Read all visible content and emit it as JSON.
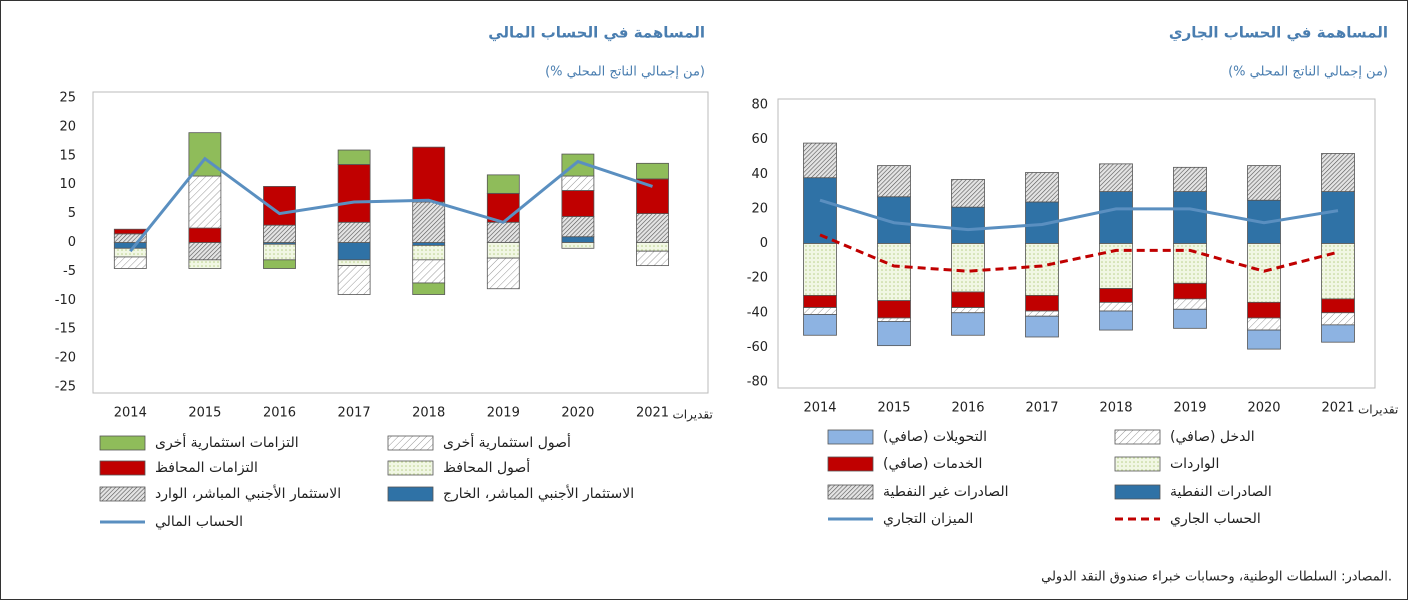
{
  "chart_data": [
    {
      "type": "bar",
      "stacked": true,
      "title": "المساهمة في الحساب الجاري",
      "subtitle": "(% من إجمالي الناتج المحلي)",
      "categories": [
        "2014",
        "2015",
        "2016",
        "2017",
        "2018",
        "2019",
        "2020",
        "2021"
      ],
      "estimate_label": "تقديرات",
      "ylim": [
        -80,
        80
      ],
      "yticks": [
        -80,
        -60,
        -40,
        -20,
        0,
        20,
        40,
        60,
        80
      ],
      "series": [
        {
          "name": "الصادرات النفطية",
          "color": "#2f72a6",
          "pattern": "none",
          "values": [
            38,
            27,
            21,
            24,
            30,
            30,
            25,
            30
          ]
        },
        {
          "name": "الصادرات غير النفطية",
          "color": "#555555",
          "pattern": "dense-hatch",
          "values": [
            20,
            18,
            16,
            17,
            16,
            14,
            20,
            22
          ]
        },
        {
          "name": "الواردات",
          "color": "#b9d08a",
          "pattern": "dots",
          "values": [
            -30,
            -33,
            -28,
            -30,
            -26,
            -23,
            -34,
            -32
          ]
        },
        {
          "name": "الخدمات (صافي)",
          "color": "#c00000",
          "pattern": "none",
          "values": [
            -7,
            -10,
            -9,
            -9,
            -8,
            -9,
            -9,
            -8
          ]
        },
        {
          "name": "الدخل (صافي)",
          "color": "#999999",
          "pattern": "light-hatch",
          "values": [
            -4,
            -2,
            -3,
            -3,
            -5,
            -6,
            -7,
            -7
          ]
        },
        {
          "name": "التحويلات (صافي)",
          "color": "#8db3e2",
          "pattern": "none",
          "values": [
            -12,
            -14,
            -13,
            -12,
            -11,
            -11,
            -11,
            -10
          ]
        },
        {
          "name": "الميزان التجاري",
          "type": "line",
          "color": "#5a8fc0",
          "line_style": "solid",
          "values": [
            25,
            12,
            8,
            11,
            20,
            20,
            12,
            19
          ]
        },
        {
          "name": "الحساب الجاري",
          "type": "line",
          "color": "#c00000",
          "line_style": "dashed",
          "values": [
            5,
            -13,
            -16,
            -13,
            -4,
            -4,
            -16,
            -5
          ]
        }
      ]
    },
    {
      "type": "bar",
      "stacked": true,
      "title": "المساهمة في الحساب المالي",
      "subtitle": "(% من إجمالي الناتج المحلي)",
      "categories": [
        "2014",
        "2015",
        "2016",
        "2017",
        "2018",
        "2019",
        "2020",
        "2021"
      ],
      "estimate_label": "تقديرات",
      "ylim": [
        -25,
        25
      ],
      "yticks": [
        -25,
        -20,
        -15,
        -10,
        -5,
        0,
        5,
        10,
        15,
        20,
        25
      ],
      "series": [
        {
          "name": "الاستثمار الأجنبي المباشر، الخارج",
          "color": "#2f72a6",
          "pattern": "none",
          "values": [
            -1,
            0,
            -0.3,
            -3,
            -0.5,
            0,
            1,
            0
          ]
        },
        {
          "name": "الاستثمار الأجنبي المباشر، الوارد",
          "color": "#555555",
          "pattern": "dense-hatch",
          "values": [
            1.5,
            -3,
            3,
            3.5,
            7,
            3.5,
            3.5,
            5
          ]
        },
        {
          "name": "أصول المحافظ",
          "color": "#b9d08a",
          "pattern": "dots",
          "values": [
            -1.5,
            -1.5,
            -2.7,
            -1,
            -2.5,
            -2.7,
            -1,
            -1.5
          ]
        },
        {
          "name": "التزامات المحافظ",
          "color": "#c00000",
          "pattern": "none",
          "values": [
            0.8,
            2.5,
            6.7,
            10,
            9.5,
            5,
            4.5,
            6
          ]
        },
        {
          "name": "أصول استثمارية أخرى",
          "color": "#999999",
          "pattern": "light-hatch",
          "values": [
            -2,
            9,
            0,
            -5,
            -4,
            -5.3,
            2.5,
            -2.5
          ]
        },
        {
          "name": "التزامات استثمارية أخرى",
          "color": "#8fbc5a",
          "pattern": "none",
          "values": [
            0,
            7.5,
            -1.5,
            2.5,
            -2,
            3.2,
            3.8,
            2.7
          ]
        },
        {
          "name": "الحساب المالي",
          "type": "line",
          "color": "#5a8fc0",
          "line_style": "solid",
          "values": [
            -1.5,
            14.5,
            5,
            7,
            7.3,
            3.5,
            14,
            9.7
          ]
        }
      ]
    }
  ],
  "source": "المصادر: السلطات الوطنية، وحسابات خبراء صندوق النقد الدولي."
}
